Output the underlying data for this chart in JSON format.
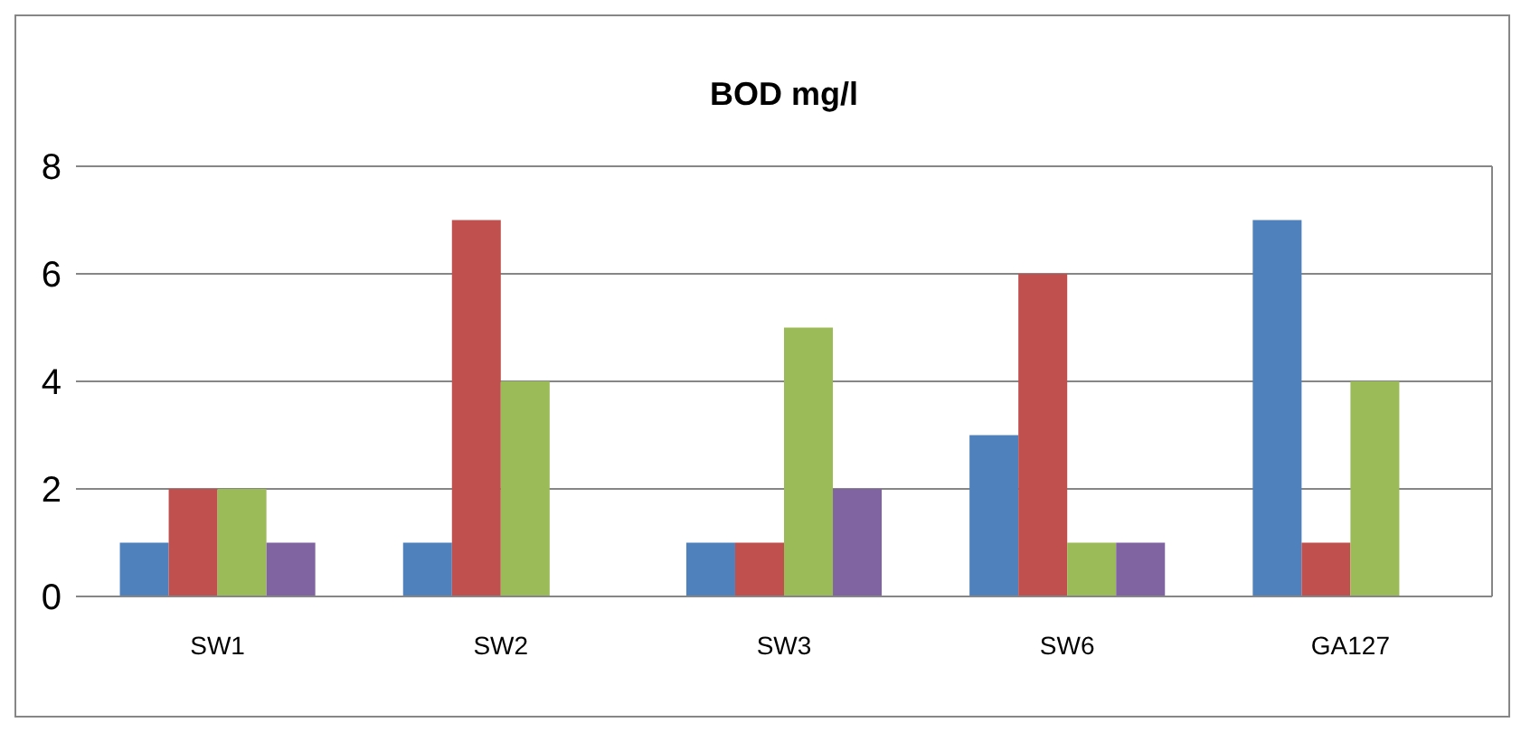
{
  "chart_data": {
    "type": "bar",
    "title": "BOD mg/l",
    "categories": [
      "SW1",
      "SW2",
      "SW3",
      "SW6",
      "GA127"
    ],
    "series": [
      {
        "color": "#4f81bd",
        "values": [
          1,
          1,
          1,
          3,
          7
        ]
      },
      {
        "color": "#c0504d",
        "values": [
          2,
          7,
          1,
          6,
          1
        ]
      },
      {
        "color": "#9bbb59",
        "values": [
          2,
          4,
          5,
          1,
          4
        ]
      },
      {
        "color": "#8064a2",
        "values": [
          1,
          0,
          2,
          1,
          0
        ]
      }
    ],
    "ylim": [
      0,
      8
    ],
    "yticks": [
      0,
      2,
      4,
      6,
      8
    ],
    "grid": "y"
  }
}
